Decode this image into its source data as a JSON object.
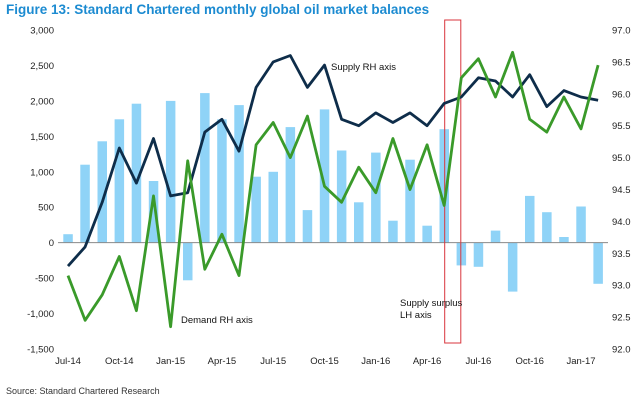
{
  "figure_title": "Figure 13: Standard Chartered monthly global oil market balances",
  "source": "Source:  Standard Chartered Research",
  "colors": {
    "title": "#1c8bd1",
    "bars": "#8fd3f7",
    "supply_line": "#0e2d4a",
    "demand_line": "#3a9a2a",
    "highlight_box": "#d9353d",
    "zero_line": "#8a8a8a"
  },
  "chart_data": {
    "type": "bar",
    "title": "",
    "months": [
      "Jul-14",
      "Aug-14",
      "Sep-14",
      "Oct-14",
      "Nov-14",
      "Dec-14",
      "Jan-15",
      "Feb-15",
      "Mar-15",
      "Apr-15",
      "May-15",
      "Jun-15",
      "Jul-15",
      "Aug-15",
      "Sep-15",
      "Oct-15",
      "Nov-15",
      "Dec-15",
      "Jan-16",
      "Feb-16",
      "Mar-16",
      "Apr-16",
      "May-16",
      "Jun-16",
      "Jul-16",
      "Aug-16",
      "Sep-16",
      "Oct-16",
      "Nov-16",
      "Dec-16",
      "Jan-17",
      "Feb-17"
    ],
    "x_tick_labels": [
      "Jul-14",
      "Oct-14",
      "Jan-15",
      "Apr-15",
      "Jul-15",
      "Oct-15",
      "Jan-16",
      "Apr-16",
      "Jul-16",
      "Oct-16",
      "Jan-17"
    ],
    "left_axis": {
      "min": -1500,
      "max": 3000,
      "step": 500,
      "tick_labels": [
        "-1,500",
        "-1,000",
        "-500",
        "0",
        "500",
        "1,000",
        "1,500",
        "2,000",
        "2,500",
        "3,000"
      ]
    },
    "right_axis": {
      "min": 92.0,
      "max": 97.0,
      "step": 0.5,
      "tick_labels": [
        "92.0",
        "92.5",
        "93.0",
        "93.5",
        "94.0",
        "94.5",
        "95.0",
        "95.5",
        "96.0",
        "96.5",
        "97.0"
      ]
    },
    "series": [
      {
        "name": "Supply surplus LH axis",
        "type": "bar",
        "axis": "left",
        "values": [
          120,
          1100,
          1430,
          1740,
          1960,
          870,
          2000,
          -530,
          2110,
          1740,
          1940,
          930,
          1000,
          1630,
          460,
          1880,
          1300,
          570,
          1270,
          310,
          1170,
          240,
          1600,
          -320,
          -340,
          170,
          -690,
          660,
          430,
          80,
          510,
          -580
        ]
      },
      {
        "name": "Supply RH axis",
        "type": "line",
        "axis": "right",
        "values": [
          93.3,
          93.6,
          94.3,
          95.15,
          94.6,
          95.3,
          94.4,
          94.45,
          95.4,
          95.6,
          95.1,
          96.1,
          96.5,
          96.6,
          96.1,
          96.45,
          95.6,
          95.5,
          95.7,
          95.55,
          95.7,
          95.5,
          95.85,
          95.95,
          96.25,
          96.2,
          95.95,
          96.3,
          95.8,
          96.05,
          95.95,
          95.9
        ]
      },
      {
        "name": "Demand RH axis",
        "type": "line",
        "axis": "right",
        "values": [
          93.15,
          92.45,
          92.85,
          93.45,
          92.6,
          94.4,
          92.35,
          94.95,
          93.25,
          93.8,
          93.15,
          95.2,
          95.55,
          95.0,
          95.65,
          94.55,
          94.3,
          94.85,
          94.45,
          95.3,
          94.5,
          95.2,
          94.25,
          96.25,
          96.55,
          95.95,
          96.65,
          95.6,
          95.4,
          95.95,
          95.45,
          96.45
        ]
      }
    ],
    "annotations": {
      "supply_label": "Supply RH axis",
      "demand_label": "Demand RH axis",
      "surplus_label_line1": "Supply surplus",
      "surplus_label_line2": "LH axis"
    },
    "highlight_box": {
      "from_month": "May-16",
      "to_month": "Jun-16"
    },
    "grid": false,
    "legend": "none"
  }
}
